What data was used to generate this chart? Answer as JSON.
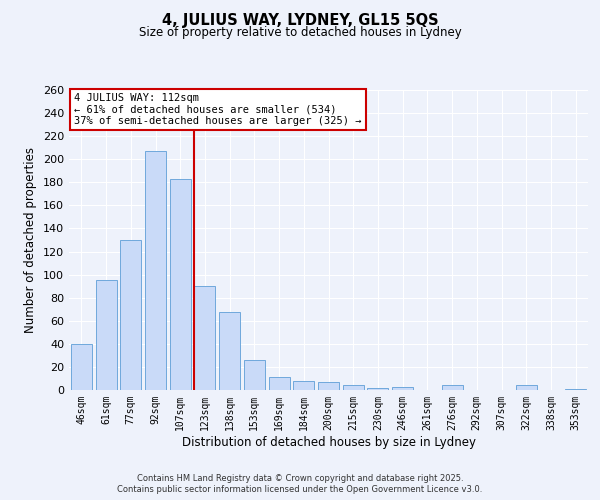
{
  "title": "4, JULIUS WAY, LYDNEY, GL15 5QS",
  "subtitle": "Size of property relative to detached houses in Lydney",
  "xlabel": "Distribution of detached houses by size in Lydney",
  "ylabel": "Number of detached properties",
  "bar_labels": [
    "46sqm",
    "61sqm",
    "77sqm",
    "92sqm",
    "107sqm",
    "123sqm",
    "138sqm",
    "153sqm",
    "169sqm",
    "184sqm",
    "200sqm",
    "215sqm",
    "230sqm",
    "246sqm",
    "261sqm",
    "276sqm",
    "292sqm",
    "307sqm",
    "322sqm",
    "338sqm",
    "353sqm"
  ],
  "bar_values": [
    40,
    95,
    130,
    207,
    183,
    90,
    68,
    26,
    11,
    8,
    7,
    4,
    2,
    3,
    0,
    4,
    0,
    0,
    4,
    0,
    1
  ],
  "bar_color": "#c9daf8",
  "bar_edge_color": "#6fa8dc",
  "vline_color": "#cc0000",
  "vline_x_index": 4.575,
  "annotation_title": "4 JULIUS WAY: 112sqm",
  "annotation_line1": "← 61% of detached houses are smaller (534)",
  "annotation_line2": "37% of semi-detached houses are larger (325) →",
  "annotation_box_color": "#ffffff",
  "annotation_box_edge_color": "#cc0000",
  "ylim": [
    0,
    260
  ],
  "yticks": [
    0,
    20,
    40,
    60,
    80,
    100,
    120,
    140,
    160,
    180,
    200,
    220,
    240,
    260
  ],
  "footer_line1": "Contains HM Land Registry data © Crown copyright and database right 2025.",
  "footer_line2": "Contains public sector information licensed under the Open Government Licence v3.0.",
  "bg_color": "#eef2fb",
  "grid_color": "#ffffff"
}
